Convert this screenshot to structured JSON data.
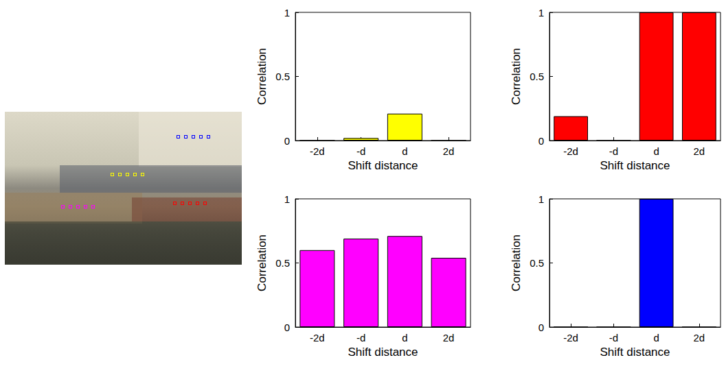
{
  "chart_data": [
    {
      "type": "bar",
      "color": "#ffff00",
      "categories": [
        "-2d",
        "-d",
        "d",
        "2d"
      ],
      "values": [
        0,
        0.02,
        0.21,
        0
      ],
      "xlabel": "Shift distance",
      "ylabel": "Correlation",
      "ylim": [
        0,
        1
      ],
      "yticks": [
        0,
        0.5,
        1
      ],
      "grid": false
    },
    {
      "type": "bar",
      "color": "#ff0000",
      "categories": [
        "-2d",
        "-d",
        "d",
        "2d"
      ],
      "values": [
        0.19,
        0,
        1,
        1
      ],
      "xlabel": "Shift distance",
      "ylabel": "Correlation",
      "ylim": [
        0,
        1
      ],
      "yticks": [
        0,
        0.5,
        1
      ],
      "grid": false
    },
    {
      "type": "bar",
      "color": "#ff00ff",
      "categories": [
        "-2d",
        "-d",
        "d",
        "2d"
      ],
      "values": [
        0.6,
        0.69,
        0.71,
        0.54
      ],
      "xlabel": "Shift distance",
      "ylabel": "Correlation",
      "ylim": [
        0,
        1
      ],
      "yticks": [
        0,
        0.5,
        1
      ],
      "grid": false
    },
    {
      "type": "bar",
      "color": "#0000ff",
      "categories": [
        "-2d",
        "-d",
        "d",
        "2d"
      ],
      "values": [
        0,
        0,
        1,
        0
      ],
      "xlabel": "Shift distance",
      "ylabel": "Correlation",
      "ylim": [
        0,
        1
      ],
      "yticks": [
        0,
        0.5,
        1
      ],
      "grid": false
    }
  ]
}
